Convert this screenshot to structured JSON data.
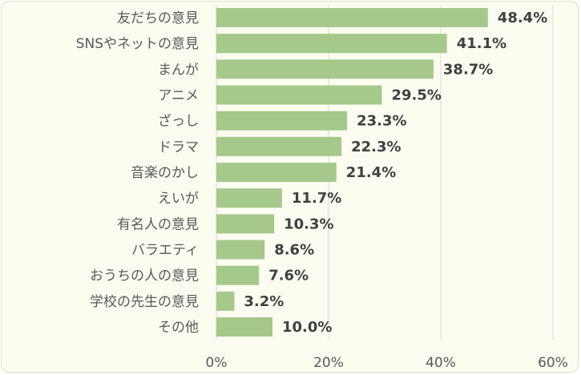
{
  "chart_data": {
    "type": "bar",
    "orientation": "horizontal",
    "categories": [
      "友だちの意見",
      "SNSやネットの意見",
      "まんが",
      "アニメ",
      "ざっし",
      "ドラマ",
      "音楽のかし",
      "えいが",
      "有名人の意見",
      "バラエティ",
      "おうちの人の意見",
      "学校の先生の意見",
      "その他"
    ],
    "values": [
      48.4,
      41.1,
      38.7,
      29.5,
      23.3,
      22.3,
      21.4,
      11.7,
      10.3,
      8.6,
      7.6,
      3.2,
      10.0
    ],
    "value_labels": [
      "48.4%",
      "41.1%",
      "38.7%",
      "29.5%",
      "23.3%",
      "22.3%",
      "21.4%",
      "11.7%",
      "10.3%",
      "8.6%",
      "7.6%",
      "3.2%",
      "10.0%"
    ],
    "x_ticks": [
      0,
      20,
      40,
      60
    ],
    "x_tick_labels": [
      "0%",
      "20%",
      "40%",
      "60%"
    ],
    "xlim": [
      0,
      60
    ],
    "grid": true,
    "bar_color": "#a4c98a",
    "background_color": "#fdfcf1",
    "title": "",
    "xlabel": "",
    "ylabel": ""
  }
}
